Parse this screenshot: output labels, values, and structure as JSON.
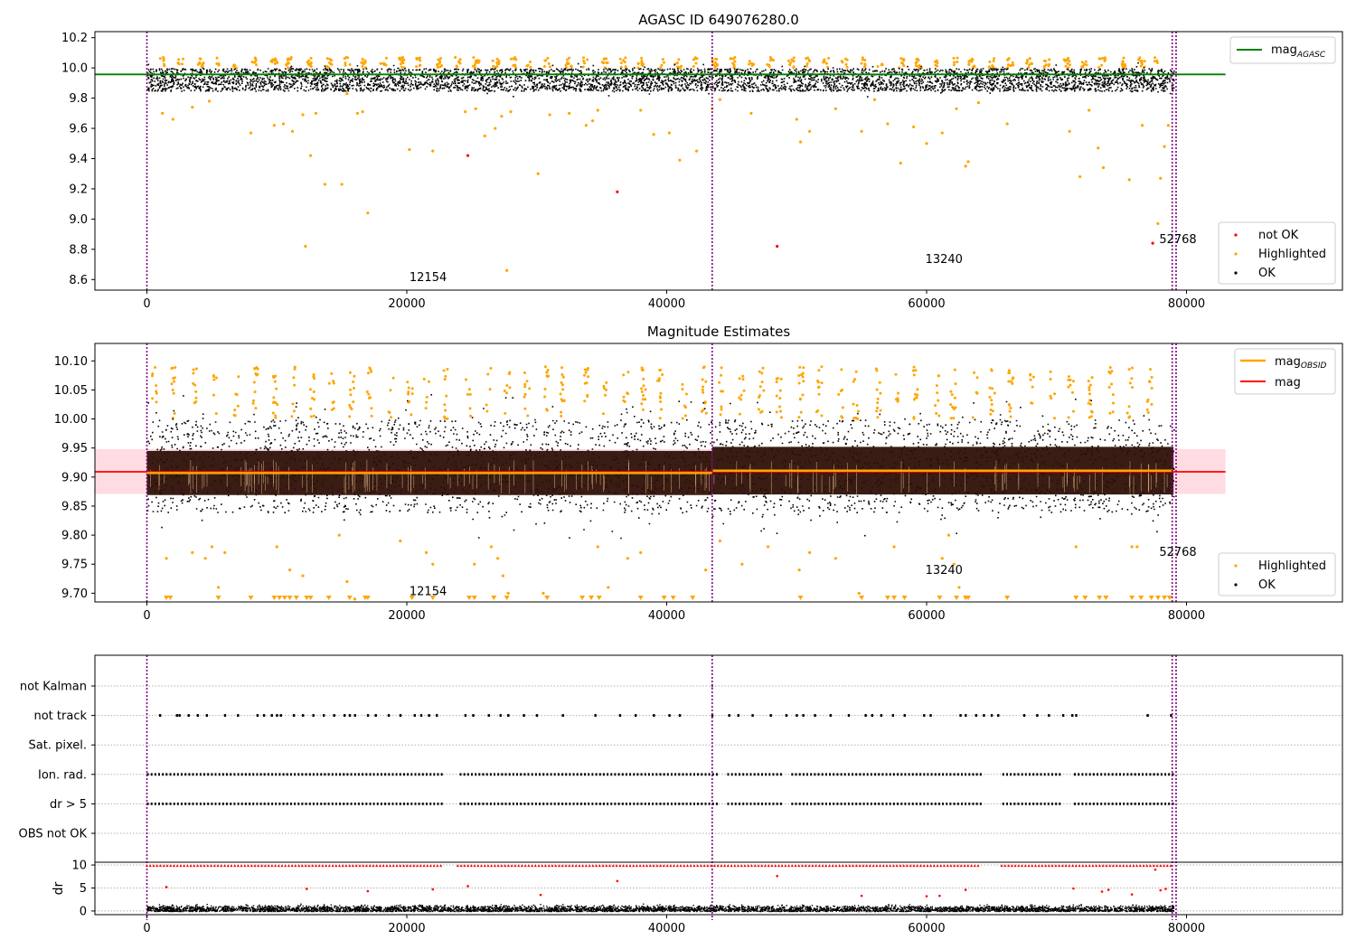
{
  "chart_data": [
    {
      "type": "scatter",
      "title": "AGASC ID 649076280.0",
      "xlim": [
        -4000,
        92000
      ],
      "ylim": [
        8.53,
        10.24
      ],
      "yticks": [
        8.6,
        8.8,
        9.0,
        9.2,
        9.4,
        9.6,
        9.8,
        10.0,
        10.2
      ],
      "xticks": [
        0,
        20000,
        40000,
        60000,
        80000
      ],
      "ok_band": {
        "x0": 0,
        "x1": 79000,
        "y_low": 9.85,
        "y_high": 10.0
      },
      "agasc_mag": {
        "value": 9.957,
        "x0": -4000,
        "x1": 83000,
        "label_main": "mag",
        "label_sub": "AGASC"
      },
      "highlighted_points": [
        [
          1200,
          9.7
        ],
        [
          2000,
          9.66
        ],
        [
          3500,
          9.74
        ],
        [
          4800,
          9.78
        ],
        [
          8000,
          9.57
        ],
        [
          9800,
          9.62
        ],
        [
          10500,
          9.63
        ],
        [
          11200,
          9.58
        ],
        [
          12000,
          9.69
        ],
        [
          12200,
          8.82
        ],
        [
          12600,
          9.42
        ],
        [
          13000,
          9.7
        ],
        [
          13700,
          9.23
        ],
        [
          15000,
          9.23
        ],
        [
          15400,
          9.83
        ],
        [
          16200,
          9.7
        ],
        [
          16600,
          9.71
        ],
        [
          17000,
          9.04
        ],
        [
          20200,
          9.46
        ],
        [
          22000,
          9.45
        ],
        [
          24500,
          9.71
        ],
        [
          25300,
          9.73
        ],
        [
          26000,
          9.55
        ],
        [
          26800,
          9.6
        ],
        [
          27300,
          9.68
        ],
        [
          27700,
          8.66
        ],
        [
          28000,
          9.71
        ],
        [
          30100,
          9.3
        ],
        [
          31000,
          9.69
        ],
        [
          32500,
          9.7
        ],
        [
          33800,
          9.62
        ],
        [
          34300,
          9.65
        ],
        [
          34700,
          9.72
        ],
        [
          38000,
          9.72
        ],
        [
          39000,
          9.56
        ],
        [
          40200,
          9.57
        ],
        [
          41000,
          9.39
        ],
        [
          42300,
          9.45
        ],
        [
          43500,
          9.73
        ],
        [
          44100,
          9.79
        ],
        [
          46500,
          9.7
        ],
        [
          50000,
          9.66
        ],
        [
          50300,
          9.51
        ],
        [
          51000,
          9.58
        ],
        [
          53000,
          9.73
        ],
        [
          55000,
          9.58
        ],
        [
          56000,
          9.79
        ],
        [
          57000,
          9.63
        ],
        [
          58000,
          9.37
        ],
        [
          59000,
          9.61
        ],
        [
          60000,
          9.5
        ],
        [
          61200,
          9.57
        ],
        [
          62300,
          9.73
        ],
        [
          63000,
          9.35
        ],
        [
          63200,
          9.38
        ],
        [
          64000,
          9.77
        ],
        [
          66200,
          9.63
        ],
        [
          71000,
          9.58
        ],
        [
          71800,
          9.28
        ],
        [
          72500,
          9.72
        ],
        [
          73200,
          9.47
        ],
        [
          73600,
          9.34
        ],
        [
          75600,
          9.26
        ],
        [
          76600,
          9.62
        ],
        [
          77800,
          8.97
        ],
        [
          78000,
          9.27
        ],
        [
          78300,
          9.48
        ],
        [
          78600,
          9.62
        ]
      ],
      "not_ok_points": [
        [
          24700,
          9.42
        ],
        [
          36200,
          9.18
        ],
        [
          48500,
          8.82
        ],
        [
          77400,
          8.84
        ]
      ],
      "obsid_boundaries": [
        0,
        43500,
        78900,
        79200
      ],
      "annotations": [
        {
          "x": 20200,
          "y": 8.59,
          "text": "12154"
        },
        {
          "x": 59900,
          "y": 8.71,
          "text": "13240"
        },
        {
          "x": 77900,
          "y": 8.84,
          "text": "52768"
        }
      ],
      "legend": {
        "placement": "top-right, lower-right",
        "entries": [
          "not OK",
          "Highlighted",
          "OK"
        ]
      }
    },
    {
      "type": "scatter",
      "title": "Magnitude Estimates",
      "xlim": [
        -4000,
        92000
      ],
      "ylim": [
        9.685,
        10.13
      ],
      "yticks": [
        9.7,
        9.75,
        9.8,
        9.85,
        9.9,
        9.95,
        10.0,
        10.05,
        10.1
      ],
      "ytick_labels": [
        "9.70",
        "9.75",
        "9.80",
        "9.85",
        "9.90",
        "9.95",
        "10.00",
        "10.05",
        "10.10"
      ],
      "xticks": [
        0,
        20000,
        40000,
        60000,
        80000
      ],
      "ok_band": {
        "x0": 0,
        "x1": 79000,
        "y_low": 9.84,
        "y_high": 10.0
      },
      "mag": {
        "value": 9.909,
        "band_low": 9.871,
        "band_high": 9.948,
        "x0": -4000,
        "x1": 83000,
        "label": "mag"
      },
      "mag_obsid": [
        {
          "x0": 0,
          "x1": 43500,
          "value": 9.907,
          "band_low": 9.869,
          "band_high": 9.945
        },
        {
          "x0": 43500,
          "x1": 79000,
          "value": 9.911,
          "band_low": 9.87,
          "band_high": 9.952
        }
      ],
      "mag_obsid_label_main": "mag",
      "mag_obsid_label_sub": "OBSID",
      "highlighted_points": [
        [
          1500,
          9.76
        ],
        [
          3500,
          9.77
        ],
        [
          4500,
          9.76
        ],
        [
          5000,
          9.78
        ],
        [
          5500,
          9.71
        ],
        [
          6000,
          9.77
        ],
        [
          10000,
          9.78
        ],
        [
          11000,
          9.74
        ],
        [
          12000,
          9.73
        ],
        [
          14800,
          9.8
        ],
        [
          15400,
          9.72
        ],
        [
          16000,
          9.69
        ],
        [
          19500,
          9.79
        ],
        [
          21500,
          9.77
        ],
        [
          22000,
          9.75
        ],
        [
          25200,
          9.75
        ],
        [
          26500,
          9.78
        ],
        [
          27000,
          9.76
        ],
        [
          27400,
          9.73
        ],
        [
          27800,
          9.7
        ],
        [
          30500,
          9.7
        ],
        [
          34700,
          9.78
        ],
        [
          35500,
          9.71
        ],
        [
          37000,
          9.76
        ],
        [
          38000,
          9.77
        ],
        [
          43000,
          9.74
        ],
        [
          44100,
          9.79
        ],
        [
          45800,
          9.75
        ],
        [
          47800,
          9.78
        ],
        [
          50200,
          9.74
        ],
        [
          51000,
          9.77
        ],
        [
          53000,
          9.76
        ],
        [
          54800,
          9.7
        ],
        [
          57500,
          9.78
        ],
        [
          61200,
          9.76
        ],
        [
          61700,
          9.8
        ],
        [
          62100,
          9.75
        ],
        [
          62500,
          9.71
        ],
        [
          71500,
          9.78
        ],
        [
          75800,
          9.78
        ],
        [
          76200,
          9.78
        ]
      ],
      "clipped_low_x": [
        1500,
        1800,
        5500,
        8000,
        9800,
        10200,
        10600,
        11000,
        11500,
        12300,
        12600,
        14000,
        15600,
        16800,
        17000,
        20400,
        22000,
        24800,
        25200,
        26700,
        27700,
        30800,
        33500,
        34200,
        34800,
        38000,
        39800,
        40500,
        42000,
        50300,
        55000,
        57000,
        57500,
        58300,
        61000,
        62300,
        63000,
        63200,
        66200,
        71500,
        72200,
        73300,
        73800,
        75800,
        76500,
        77300,
        77800,
        78300,
        78700
      ],
      "obsid_boundaries": [
        0,
        43500,
        78900,
        79200
      ],
      "annotations": [
        {
          "x": 20200,
          "y": 9.697,
          "text": "12154"
        },
        {
          "x": 59900,
          "y": 9.733,
          "text": "13240"
        },
        {
          "x": 77900,
          "y": 9.764,
          "text": "52768"
        }
      ],
      "legend": {
        "placement": "top-right, lower-right",
        "entries": [
          "mag",
          "mag",
          "Highlighted",
          "OK"
        ]
      }
    },
    {
      "type": "scatter",
      "title": "",
      "xlim": [
        -4000,
        92000
      ],
      "xticks": [
        0,
        20000,
        40000,
        60000,
        80000
      ],
      "flag_categories": [
        "not Kalman",
        "not track",
        "Sat. pixel.",
        "Ion. rad.",
        "dr > 5",
        "OBS not OK"
      ],
      "flag_rows_x": {
        "not track": [
          1000,
          2300,
          2500,
          3200,
          3900,
          4600,
          6000,
          7000,
          8500,
          9000,
          9600,
          10000,
          10300,
          11300,
          12000,
          12800,
          13600,
          14400,
          15200,
          15600,
          16000,
          17000,
          17600,
          18600,
          19500,
          20600,
          21100,
          21700,
          22300,
          24500,
          25100,
          26300,
          27200,
          27800,
          29000,
          30000,
          32000,
          34500,
          36400,
          37600,
          39000,
          40200,
          41000,
          43500,
          44800,
          45500,
          46600,
          48000,
          49200,
          50000,
          50500,
          51400,
          52600,
          54000,
          55300,
          55800,
          56500,
          57400,
          58300,
          59800,
          60300,
          62600,
          63000,
          63800,
          64400,
          65000,
          65500,
          67500,
          68500,
          69400,
          70500,
          71200,
          71500,
          77000,
          78800
        ],
        "Ion. rad.": {
          "range": [
            0,
            79000
          ],
          "gaps": [
            [
              22800,
              23800
            ],
            [
              44000,
              44400
            ],
            [
              48800,
              49400
            ],
            [
              64200,
              65600
            ],
            [
              70300,
              71100
            ]
          ]
        },
        "dr > 5": {
          "range": [
            0,
            79000
          ],
          "gaps": [
            [
              22800,
              23800
            ],
            [
              44000,
              44400
            ],
            [
              48800,
              49400
            ],
            [
              64200,
              65600
            ],
            [
              70300,
              71100
            ]
          ]
        }
      },
      "dr": {
        "ylabel": "dr",
        "yticks": [
          0,
          5,
          10
        ],
        "ylim": [
          -0.8,
          10.6
        ],
        "clipped_value": 10,
        "red_points": [
          [
            1500,
            5.2
          ],
          [
            12300,
            4.8
          ],
          [
            17000,
            4.3
          ],
          [
            22000,
            4.7
          ],
          [
            24700,
            5.4
          ],
          [
            30300,
            3.5
          ],
          [
            36200,
            6.5
          ],
          [
            48500,
            7.6
          ],
          [
            55000,
            3.3
          ],
          [
            60000,
            3.2
          ],
          [
            61000,
            3.3
          ],
          [
            63000,
            4.6
          ],
          [
            71300,
            4.9
          ],
          [
            73500,
            4.2
          ],
          [
            74000,
            4.6
          ],
          [
            75800,
            3.6
          ],
          [
            77600,
            9.0
          ],
          [
            78000,
            4.5
          ],
          [
            78400,
            4.8
          ]
        ]
      },
      "obsid_boundaries": [
        0,
        43500,
        78900,
        79200
      ]
    }
  ],
  "colors": {
    "ok": "#000000",
    "highlighted": "#ffa500",
    "not_ok": "#ff0000",
    "agasc": "#008000",
    "mag": "#ff0000",
    "mag_obsid": "#ffa500",
    "boundary": "#800080",
    "band": "#ffc0cb"
  }
}
